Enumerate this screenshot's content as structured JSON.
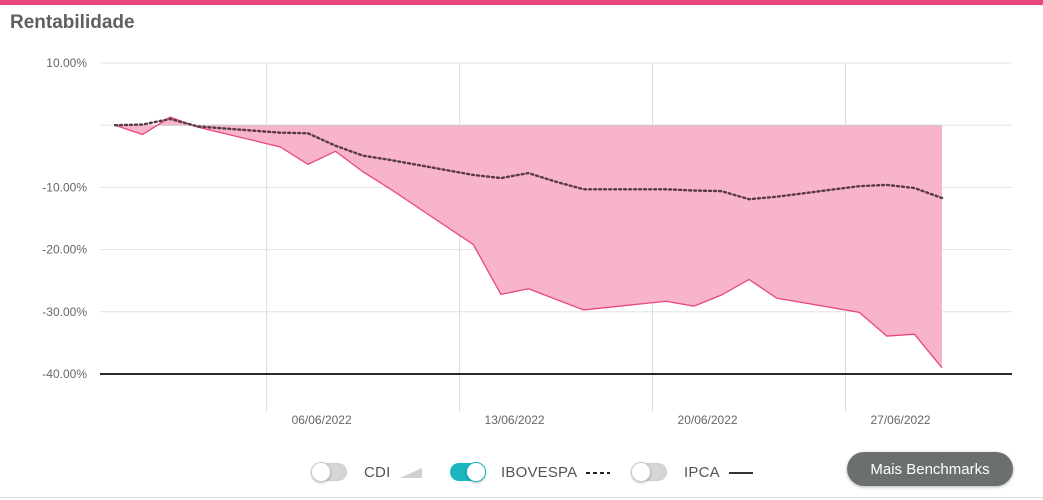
{
  "title": "Rentabilidade",
  "colors": {
    "accent": "#e8467c",
    "fund_fill": "#f8b4cc",
    "fund_line": "#e8467c",
    "ibovespa_line": "#5a3a44",
    "toggle_on": "#1ab7c1"
  },
  "chart_data": {
    "type": "area",
    "x_ticks": [
      "06/06/2022",
      "13/06/2022",
      "20/06/2022",
      "27/06/2022"
    ],
    "y_ticks": [
      "10.00%",
      "-10.00%",
      "-20.00%",
      "-30.00%",
      "-40.00%"
    ],
    "ylim": [
      -40,
      10
    ],
    "xlim": [
      -5.3,
      29.9
    ],
    "grid": true,
    "series": [
      {
        "name": "",
        "style": "area",
        "x": [
          0,
          1,
          2,
          3,
          6,
          7,
          8,
          9,
          10,
          13,
          14,
          15,
          16,
          17,
          20,
          21,
          22,
          23,
          24,
          27,
          28,
          29,
          30
        ],
        "y": [
          0,
          -1.5,
          1.3,
          -0.3,
          -3.5,
          -6.3,
          -4.2,
          -7.5,
          -10.3,
          -19.2,
          -27.2,
          -26.3,
          -28,
          -29.7,
          -28.3,
          -29.1,
          -27.3,
          -24.8,
          -27.8,
          -30.1,
          -33.9,
          -33.6,
          -39
        ]
      },
      {
        "name": "IBOVESPA",
        "style": "dotted",
        "x": [
          0,
          1,
          2,
          3,
          6,
          7,
          8,
          9,
          10,
          13,
          14,
          15,
          16,
          17,
          20,
          21,
          22,
          23,
          24,
          27,
          28,
          29,
          30
        ],
        "y": [
          0,
          0.1,
          1.0,
          -0.2,
          -1.2,
          -1.3,
          -3.3,
          -4.9,
          -5.6,
          -8.0,
          -8.5,
          -7.7,
          -9.1,
          -10.3,
          -10.3,
          -10.5,
          -10.6,
          -11.9,
          -11.5,
          -9.8,
          -9.6,
          -10.1,
          -11.7
        ]
      }
    ]
  },
  "legend": [
    {
      "label": "CDI",
      "on": false,
      "symbol": "cdi-area-icon"
    },
    {
      "label": "IBOVESPA",
      "on": true,
      "symbol": "dashed-line-icon"
    },
    {
      "label": "IPCA",
      "on": false,
      "symbol": "solid-line-icon"
    }
  ],
  "more_button": "Mais Benchmarks"
}
